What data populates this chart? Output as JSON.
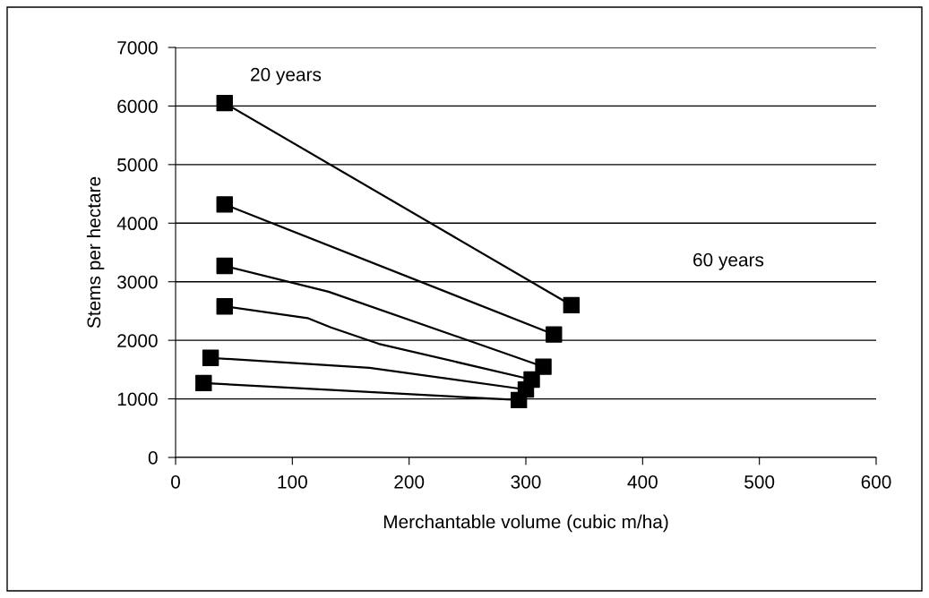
{
  "chart_data": {
    "type": "line",
    "xlabel": "Merchantable volume (cubic m/ha)",
    "ylabel": "Stems per hectare",
    "xlim": [
      0,
      600
    ],
    "xticks": [
      0,
      100,
      200,
      300,
      400,
      500,
      600
    ],
    "ylim": [
      0,
      7000
    ],
    "yticks": [
      0,
      1000,
      2000,
      3000,
      4000,
      5000,
      6000,
      7000
    ],
    "grid": "y",
    "marker": "none",
    "line_style": "solid",
    "series": [
      {
        "color": "#000000",
        "x": [
          42,
          339
        ],
        "values": [
          6050,
          2600
        ]
      },
      {
        "color": "#000000",
        "x": [
          42,
          324
        ],
        "values": [
          4320,
          2100
        ]
      },
      {
        "color": "#000000",
        "x": [
          42,
          131,
          315
        ],
        "values": [
          3270,
          2830,
          1550
        ]
      },
      {
        "color": "#000000",
        "x": [
          42,
          113,
          133,
          174,
          305
        ],
        "values": [
          2580,
          2380,
          2220,
          1940,
          1330
        ]
      },
      {
        "color": "#000000",
        "x": [
          30,
          166,
          300
        ],
        "values": [
          1700,
          1530,
          1160
        ]
      },
      {
        "color": "#000000",
        "x": [
          24,
          294
        ],
        "values": [
          1270,
          980
        ]
      },
      {
        "type": "scatter",
        "marker": "square",
        "color": "#000000",
        "x": [
          42,
          42,
          42,
          42,
          30,
          24,
          339,
          324,
          315,
          305,
          300,
          294
        ],
        "values": [
          6050,
          4320,
          3270,
          2580,
          1700,
          1270,
          2600,
          2100,
          1550,
          1330,
          1160,
          980
        ]
      }
    ],
    "annotations": [
      "20 years",
      "60 years"
    ]
  }
}
